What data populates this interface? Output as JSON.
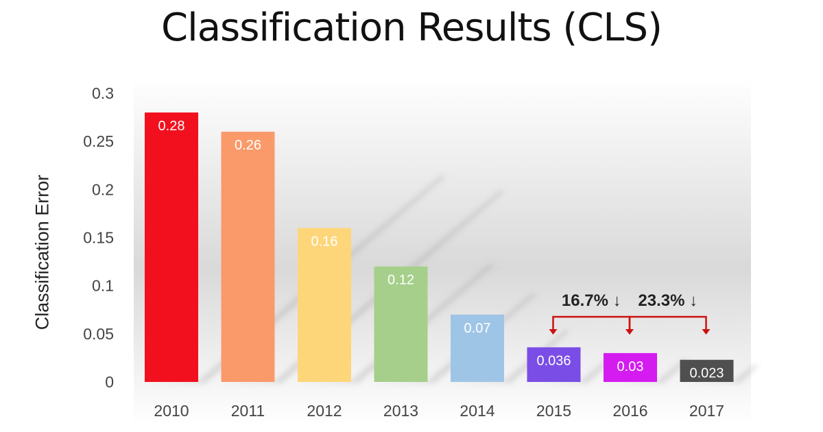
{
  "chart_data": {
    "type": "bar",
    "title": "Classification Results (CLS)",
    "xlabel": "",
    "ylabel": "Classification Error",
    "categories": [
      "2010",
      "2011",
      "2012",
      "2013",
      "2014",
      "2015",
      "2016",
      "2017"
    ],
    "values": [
      0.28,
      0.26,
      0.16,
      0.12,
      0.07,
      0.036,
      0.03,
      0.023
    ],
    "data_labels": [
      "0.28",
      "0.26",
      "0.16",
      "0.12",
      "0.07",
      "0.036",
      "0.03",
      "0.023"
    ],
    "bar_colors": [
      "#f2101e",
      "#fa9a6a",
      "#fdd67a",
      "#a5cf8a",
      "#9fc5e6",
      "#7a4de6",
      "#d41cf0",
      "#4f4f4f"
    ],
    "ylim": [
      0,
      0.3
    ],
    "yticks": [
      "0",
      "0.05",
      "0.1",
      "0.15",
      "0.2",
      "0.25",
      "0.3"
    ],
    "grid": false,
    "legend": "none",
    "annotations": [
      {
        "text": "16.7% ↓",
        "from": "2015",
        "to": "2016",
        "color": "#cc1111"
      },
      {
        "text": "23.3% ↓",
        "from": "2016",
        "to": "2017",
        "color": "#cc1111"
      }
    ]
  }
}
